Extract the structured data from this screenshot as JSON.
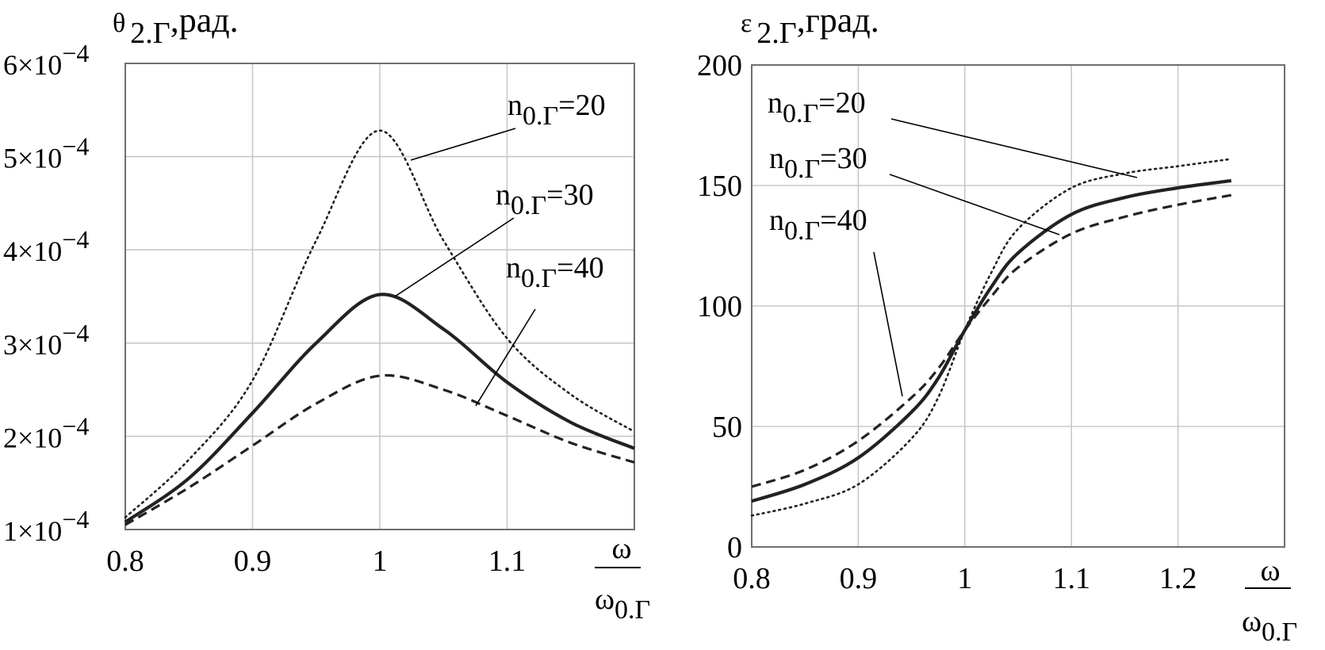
{
  "chart_data": [
    {
      "type": "line",
      "ylabel_main": "θ",
      "ylabel_sub": "2.Г",
      "ylabel_unit": ",рад.",
      "xlabel_num": "ω",
      "xlabel_den_main": "ω",
      "xlabel_den_sub": "0.Г",
      "xlim": [
        0.8,
        1.2
      ],
      "ylim": [
        0.0001,
        0.0006
      ],
      "x_ticks": [
        0.8,
        0.9,
        1.0,
        1.1
      ],
      "x_tick_labels": [
        "0.8",
        "0.9",
        "1",
        "1.1"
      ],
      "y_ticks": [
        0.0001,
        0.0002,
        0.0003,
        0.0004,
        0.0005,
        0.0006
      ],
      "y_tick_labels": [
        {
          "mant": "1×10",
          "exp": "−4"
        },
        {
          "mant": "2×10",
          "exp": "−4"
        },
        {
          "mant": "3×10",
          "exp": "−4"
        },
        {
          "mant": "4×10",
          "exp": "−4"
        },
        {
          "mant": "5×10",
          "exp": "−4"
        },
        {
          "mant": "6×10",
          "exp": "−4"
        }
      ],
      "series": [
        {
          "name": "n0.Г=20",
          "name_main": "n",
          "name_sub": "0.Г",
          "name_value": "=20",
          "style": "dotted",
          "x": [
            0.8,
            0.85,
            0.9,
            0.95,
            1.0,
            1.05,
            1.1,
            1.15,
            1.2
          ],
          "y": [
            0.000113,
            0.000175,
            0.00026,
            0.00041,
            0.000528,
            0.00041,
            0.000305,
            0.000245,
            0.000205
          ]
        },
        {
          "name": "n0.Г=30",
          "name_main": "n",
          "name_sub": "0.Г",
          "name_value": "=30",
          "style": "solid",
          "x": [
            0.8,
            0.85,
            0.9,
            0.95,
            1.0,
            1.05,
            1.1,
            1.15,
            1.2
          ],
          "y": [
            0.000108,
            0.000155,
            0.000225,
            0.0003,
            0.000352,
            0.000315,
            0.000258,
            0.000215,
            0.000187
          ]
        },
        {
          "name": "n0.Г=40",
          "name_main": "n",
          "name_sub": "0.Г",
          "name_value": "=40",
          "style": "dashed",
          "x": [
            0.8,
            0.85,
            0.9,
            0.95,
            1.0,
            1.05,
            1.1,
            1.15,
            1.2
          ],
          "y": [
            0.000105,
            0.000145,
            0.00019,
            0.000235,
            0.000265,
            0.00025,
            0.000222,
            0.000193,
            0.000172
          ]
        }
      ]
    },
    {
      "type": "line",
      "ylabel_main": "ε",
      "ylabel_sub": "2.Г",
      "ylabel_unit": ",град.",
      "xlabel_num": "ω",
      "xlabel_den_main": "ω",
      "xlabel_den_sub": "0.Г",
      "xlim": [
        0.8,
        1.3
      ],
      "ylim": [
        0,
        200
      ],
      "x_ticks": [
        0.8,
        0.9,
        1.0,
        1.1,
        1.2
      ],
      "x_tick_labels": [
        "0.8",
        "0.9",
        "1",
        "1.1",
        "1.2"
      ],
      "y_ticks": [
        0,
        50,
        100,
        150,
        200
      ],
      "y_tick_labels": [
        "0",
        "50",
        "100",
        "150",
        "200"
      ],
      "series": [
        {
          "name": "n0.Г=20",
          "name_main": "n",
          "name_sub": "0.Г",
          "name_value": "=20",
          "style": "dotted",
          "x": [
            0.8,
            0.85,
            0.9,
            0.95,
            0.975,
            1.0,
            1.025,
            1.05,
            1.1,
            1.15,
            1.2,
            1.25
          ],
          "y": [
            13,
            18,
            26,
            45,
            62,
            90,
            114,
            132,
            149,
            155,
            158,
            161
          ]
        },
        {
          "name": "n0.Г=30",
          "name_main": "n",
          "name_sub": "0.Г",
          "name_value": "=30",
          "style": "solid",
          "x": [
            0.8,
            0.85,
            0.9,
            0.95,
            0.975,
            1.0,
            1.025,
            1.05,
            1.1,
            1.15,
            1.2,
            1.25
          ],
          "y": [
            19,
            26,
            37,
            56,
            70,
            90,
            108,
            122,
            138,
            145,
            149,
            152
          ]
        },
        {
          "name": "n0.Г=40",
          "name_main": "n",
          "name_sub": "0.Г",
          "name_value": "=40",
          "style": "dashed",
          "x": [
            0.8,
            0.85,
            0.9,
            0.95,
            0.975,
            1.0,
            1.025,
            1.05,
            1.1,
            1.15,
            1.2,
            1.25
          ],
          "y": [
            25,
            32,
            44,
            62,
            74,
            90,
            104,
            116,
            130,
            137,
            142,
            146
          ]
        }
      ]
    }
  ]
}
